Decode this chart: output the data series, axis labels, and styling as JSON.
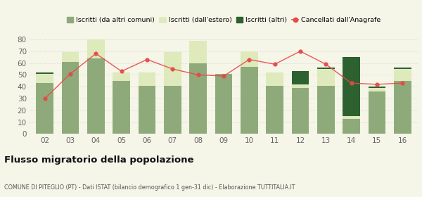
{
  "years": [
    "02",
    "03",
    "04",
    "05",
    "06",
    "07",
    "08",
    "09",
    "10",
    "11",
    "12",
    "13",
    "14",
    "15",
    "16"
  ],
  "iscritti_comuni": [
    43,
    61,
    64,
    45,
    41,
    41,
    60,
    51,
    57,
    41,
    39,
    41,
    13,
    36,
    45
  ],
  "iscritti_estero": [
    8,
    8,
    16,
    7,
    11,
    28,
    19,
    0,
    13,
    11,
    3,
    14,
    2,
    3,
    10
  ],
  "iscritti_altri": [
    1,
    0,
    0,
    0,
    0,
    0,
    0,
    0,
    0,
    0,
    11,
    1,
    50,
    1,
    1
  ],
  "cancellati": [
    30,
    51,
    68,
    53,
    63,
    55,
    50,
    49,
    63,
    59,
    70,
    59,
    43,
    42,
    43
  ],
  "color_comuni": "#8faa7a",
  "color_estero": "#deeabb",
  "color_altri": "#2d6130",
  "color_cancellati": "#e84848",
  "title": "Flusso migratorio della popolazione",
  "subtitle": "COMUNE DI PITEGLIO (PT) - Dati ISTAT (bilancio demografico 1 gen-31 dic) - Elaborazione TUTTITALIA.IT",
  "ylim": [
    0,
    80
  ],
  "yticks": [
    0,
    10,
    20,
    30,
    40,
    50,
    60,
    70,
    80
  ],
  "legend_labels": [
    "Iscritti (da altri comuni)",
    "Iscritti (dall'estero)",
    "Iscritti (altri)",
    "Cancellati dall'Anagrafe"
  ],
  "background_color": "#f5f5e8"
}
